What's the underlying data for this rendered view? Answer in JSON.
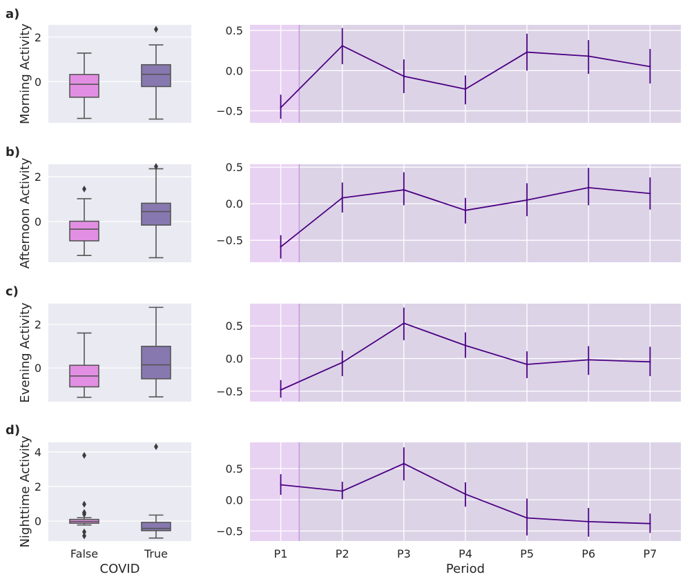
{
  "colors": {
    "false_box": "#e28fe3",
    "true_box": "#8878b0",
    "line": "#4b0082",
    "shade_pre": "#e8d2f2",
    "shade_post": "#dcd3e7",
    "divider": "#c79be0"
  },
  "chart_data": [
    {
      "type": "boxplot",
      "panel_label": "a)",
      "ylabel": "Morning Activity",
      "xlabel": "",
      "categories": [
        "False",
        "True"
      ],
      "yticks": [
        0,
        2
      ],
      "ylim": [
        -1.85,
        2.55
      ],
      "boxes": [
        {
          "name": "False",
          "whisker_low": -1.65,
          "q1": -0.7,
          "median": -0.12,
          "q3": 0.32,
          "whisker_high": 1.28,
          "outliers": []
        },
        {
          "name": "True",
          "whisker_low": -1.68,
          "q1": -0.22,
          "median": 0.33,
          "q3": 0.76,
          "whisker_high": 1.65,
          "outliers": [
            2.35
          ]
        }
      ]
    },
    {
      "type": "line",
      "ylabel": "",
      "xlabel": "",
      "categories": [
        "P1",
        "P2",
        "P3",
        "P4",
        "P5",
        "P6",
        "P7"
      ],
      "yticks": [
        -0.5,
        0.0,
        0.5
      ],
      "ytick_labels": [
        "−0.5",
        "0.0",
        "0.5"
      ],
      "ylim": [
        -0.65,
        0.57
      ],
      "series": [
        {
          "name": "Morning Activity",
          "values": [
            -0.46,
            0.31,
            -0.07,
            -0.23,
            0.23,
            0.18,
            0.05
          ],
          "err_low": [
            -0.6,
            0.08,
            -0.28,
            -0.42,
            0.0,
            -0.04,
            -0.16
          ],
          "err_high": [
            -0.3,
            0.53,
            0.14,
            -0.06,
            0.46,
            0.38,
            0.27
          ]
        }
      ]
    },
    {
      "type": "boxplot",
      "panel_label": "b)",
      "ylabel": "Afternoon Activity",
      "xlabel": "",
      "categories": [
        "False",
        "True"
      ],
      "yticks": [
        0,
        2
      ],
      "ylim": [
        -1.8,
        2.55
      ],
      "boxes": [
        {
          "name": "False",
          "whisker_low": -1.5,
          "q1": -0.85,
          "median": -0.33,
          "q3": 0.02,
          "whisker_high": 1.02,
          "outliers": [
            1.45
          ]
        },
        {
          "name": "True",
          "whisker_low": -1.6,
          "q1": -0.15,
          "median": 0.45,
          "q3": 0.82,
          "whisker_high": 2.35,
          "outliers": [
            2.45
          ]
        }
      ]
    },
    {
      "type": "line",
      "ylabel": "",
      "xlabel": "",
      "categories": [
        "P1",
        "P2",
        "P3",
        "P4",
        "P5",
        "P6",
        "P7"
      ],
      "yticks": [
        -0.5,
        0.0,
        0.5
      ],
      "ytick_labels": [
        "−0.5",
        "0.0",
        "0.5"
      ],
      "ylim": [
        -0.8,
        0.54
      ],
      "series": [
        {
          "name": "Afternoon Activity",
          "values": [
            -0.59,
            0.08,
            0.19,
            -0.09,
            0.05,
            0.22,
            0.14
          ],
          "err_low": [
            -0.75,
            -0.12,
            -0.02,
            -0.27,
            -0.17,
            -0.02,
            -0.08
          ],
          "err_high": [
            -0.43,
            0.29,
            0.43,
            0.08,
            0.28,
            0.49,
            0.36
          ]
        }
      ]
    },
    {
      "type": "boxplot",
      "panel_label": "c)",
      "ylabel": "Evening Activity",
      "xlabel": "",
      "categories": [
        "False",
        "True"
      ],
      "yticks": [
        0,
        2
      ],
      "ylim": [
        -1.55,
        2.95
      ],
      "boxes": [
        {
          "name": "False",
          "whisker_low": -1.35,
          "q1": -0.87,
          "median": -0.37,
          "q3": 0.12,
          "whisker_high": 1.6,
          "outliers": []
        },
        {
          "name": "True",
          "whisker_low": -1.33,
          "q1": -0.5,
          "median": 0.14,
          "q3": 0.99,
          "whisker_high": 2.78,
          "outliers": []
        }
      ]
    },
    {
      "type": "line",
      "ylabel": "",
      "xlabel": "",
      "categories": [
        "P1",
        "P2",
        "P3",
        "P4",
        "P5",
        "P6",
        "P7"
      ],
      "yticks": [
        -0.5,
        0.0,
        0.5
      ],
      "ytick_labels": [
        "−0.5",
        "0.0",
        "0.5"
      ],
      "ylim": [
        -0.66,
        0.84
      ],
      "series": [
        {
          "name": "Evening Activity",
          "values": [
            -0.48,
            -0.06,
            0.54,
            0.2,
            -0.09,
            -0.02,
            -0.05
          ],
          "err_low": [
            -0.6,
            -0.27,
            0.28,
            0.01,
            -0.3,
            -0.25,
            -0.27
          ],
          "err_high": [
            -0.33,
            0.12,
            0.78,
            0.4,
            0.11,
            0.19,
            0.18
          ]
        }
      ]
    },
    {
      "type": "boxplot",
      "panel_label": "d)",
      "ylabel": "Nighttime Activity",
      "xlabel": "COVID",
      "categories": [
        "False",
        "True"
      ],
      "yticks": [
        0,
        2,
        4
      ],
      "ylim": [
        -1.15,
        4.55
      ],
      "boxes": [
        {
          "name": "False",
          "whisker_low": -0.22,
          "q1": -0.12,
          "median": -0.02,
          "q3": 0.1,
          "whisker_high": 0.2,
          "outliers": [
            3.8,
            0.98,
            0.5,
            0.4,
            -0.62,
            -0.85
          ]
        },
        {
          "name": "True",
          "whisker_low": -0.98,
          "q1": -0.55,
          "median": -0.42,
          "q3": -0.07,
          "whisker_high": 0.35,
          "outliers": [
            4.3
          ]
        }
      ]
    },
    {
      "type": "line",
      "ylabel": "",
      "xlabel": "Period",
      "categories": [
        "P1",
        "P2",
        "P3",
        "P4",
        "P5",
        "P6",
        "P7"
      ],
      "yticks": [
        -0.5,
        0.0,
        0.5
      ],
      "ytick_labels": [
        "−0.5",
        "0.0",
        "0.5"
      ],
      "ylim": [
        -0.66,
        0.92
      ],
      "series": [
        {
          "name": "Nighttime Activity",
          "values": [
            0.24,
            0.14,
            0.58,
            0.09,
            -0.29,
            -0.35,
            -0.38
          ],
          "err_low": [
            0.08,
            0.01,
            0.31,
            -0.11,
            -0.57,
            -0.59,
            -0.53
          ],
          "err_high": [
            0.41,
            0.29,
            0.84,
            0.28,
            0.02,
            -0.13,
            -0.22
          ]
        }
      ]
    }
  ]
}
